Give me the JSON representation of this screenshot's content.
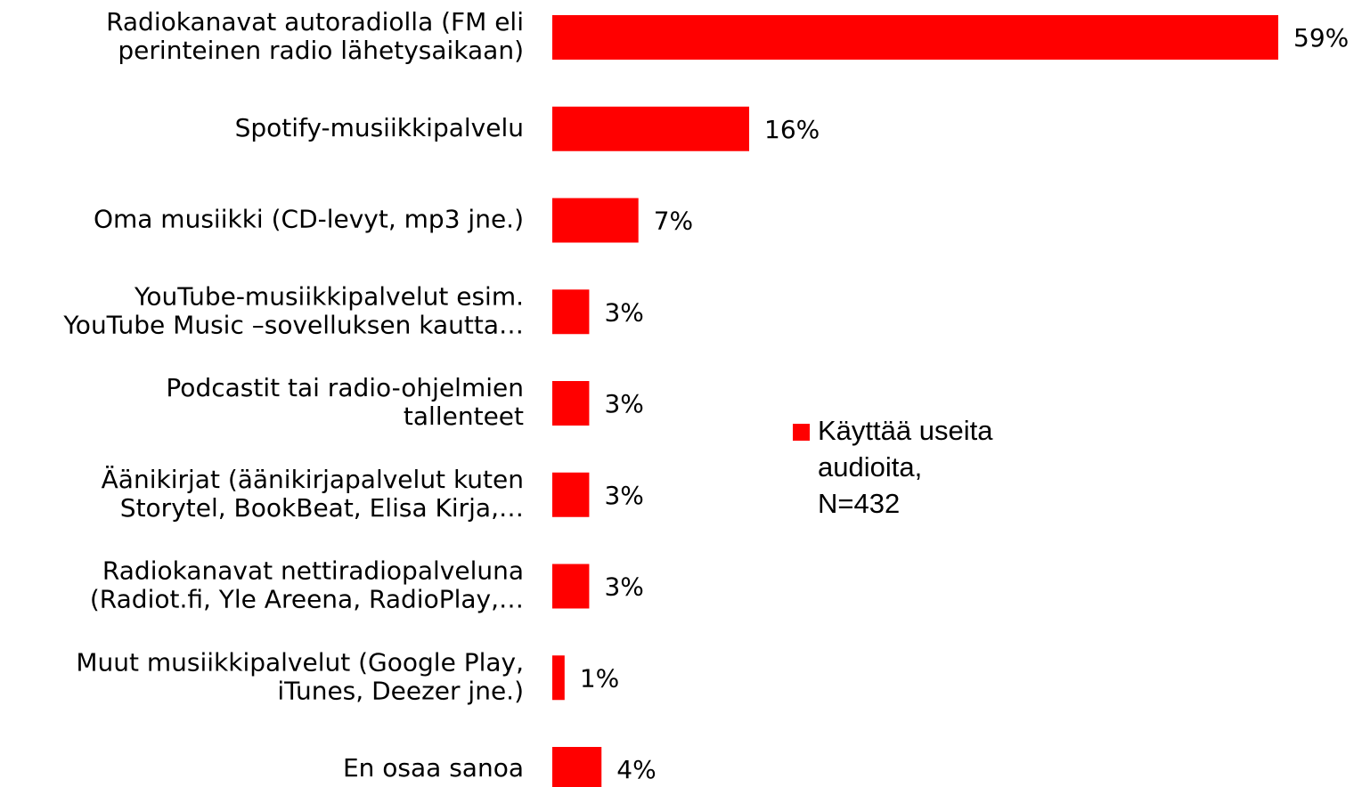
{
  "chart_data": {
    "type": "bar",
    "orientation": "horizontal",
    "categories": [
      "Radiokanavat autoradiolla (FM eli\nperinteinen radio lähetysaikaan)",
      "Spotify-musiikkipalvelu",
      "Oma musiikki (CD-levyt, mp3 jne.)",
      "YouTube-musiikkipalvelut esim.\nYouTube Music –sovelluksen kautta…",
      "Podcastit tai radio-ohjelmien\ntallenteet",
      "Äänikirjat (äänikirjapalvelut kuten\nStorytel, BookBeat, Elisa Kirja,…",
      "Radiokanavat nettiradiopalveluna\n(Radiot.fi, Yle Areena, RadioPlay,…",
      "Muut musiikkipalvelut (Google Play,\niTunes, Deezer jne.)",
      "En osaa sanoa"
    ],
    "series": [
      {
        "name": "Käyttää useita\naudioita,\nN=432",
        "color": "#ff0000",
        "values": [
          59,
          16,
          7,
          3,
          3,
          3,
          3,
          1,
          4
        ],
        "value_labels": [
          "59%",
          "16%",
          "7%",
          "3%",
          "3%",
          "3%",
          "3%",
          "1%",
          "4%"
        ]
      }
    ]
  }
}
